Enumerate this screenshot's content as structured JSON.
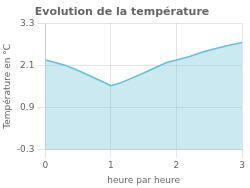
{
  "chart_data": {
    "type": "area",
    "title": "Evolution de la température",
    "xlabel": "heure par heure",
    "ylabel": "Température en °C",
    "x": [
      0,
      0.15,
      0.3,
      0.5,
      0.7,
      0.85,
      1.0,
      1.15,
      1.3,
      1.5,
      1.7,
      1.85,
      2.0,
      2.2,
      2.4,
      2.6,
      2.8,
      3.0
    ],
    "values": [
      2.25,
      2.18,
      2.1,
      1.95,
      1.78,
      1.65,
      1.52,
      1.6,
      1.72,
      1.88,
      2.05,
      2.18,
      2.25,
      2.35,
      2.48,
      2.58,
      2.67,
      2.75
    ],
    "color": "#66c0d8",
    "xlim": [
      0,
      3
    ],
    "ylim": [
      -0.3,
      3.3
    ],
    "xticks": [
      0,
      1,
      2,
      3
    ],
    "yticks": [
      -0.3,
      0.9,
      2.1,
      3.3
    ],
    "grid": true
  }
}
